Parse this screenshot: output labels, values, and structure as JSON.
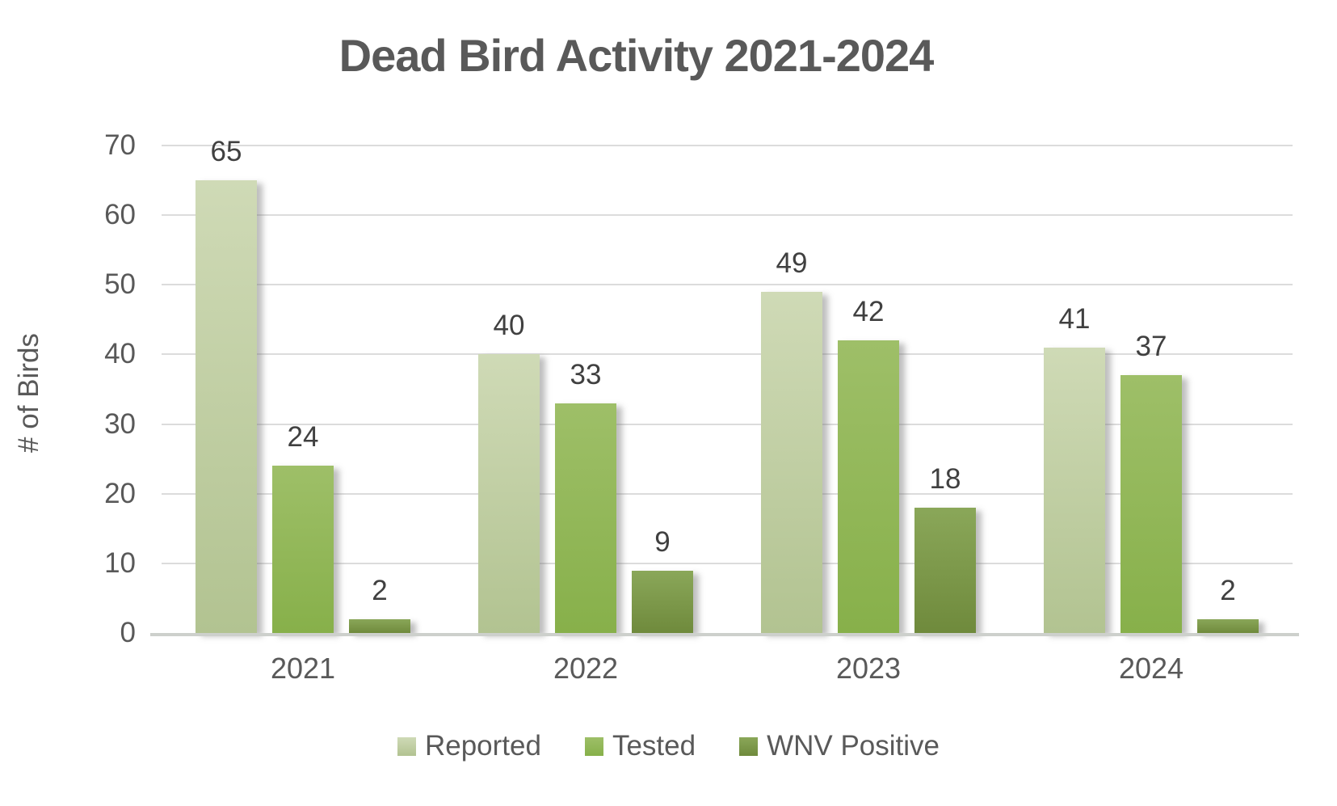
{
  "chart_data": {
    "type": "bar",
    "title": "Dead Bird Activity 2021-2024",
    "ylabel": "# of Birds",
    "xlabel": "",
    "categories": [
      "2021",
      "2022",
      "2023",
      "2024"
    ],
    "series": [
      {
        "name": "Reported",
        "values": [
          65,
          40,
          49,
          41
        ],
        "color": "#b7c995",
        "gradient_top": "#cfdab6",
        "gradient_bottom": "#b2c391"
      },
      {
        "name": "Tested",
        "values": [
          24,
          33,
          42,
          37
        ],
        "color": "#8db751",
        "gradient_top": "#9ebf68",
        "gradient_bottom": "#87b04a"
      },
      {
        "name": "WNV Positive",
        "values": [
          2,
          9,
          18,
          2
        ],
        "color": "#7b9b44",
        "gradient_top": "#8aa759",
        "gradient_bottom": "#6f8a3c"
      }
    ],
    "ylim": [
      0,
      70
    ],
    "ytick_step": 10,
    "yticks": [
      0,
      10,
      20,
      30,
      40,
      50,
      60,
      70
    ],
    "grid": true,
    "data_labels": true,
    "legend_position": "bottom"
  },
  "style": {
    "title_color": "#595959",
    "axis_text_color": "#595959",
    "data_label_color": "#404040",
    "gridline_color": "#dcdcdc",
    "baseline_color": "#cdd0cc",
    "background": "#ffffff"
  }
}
